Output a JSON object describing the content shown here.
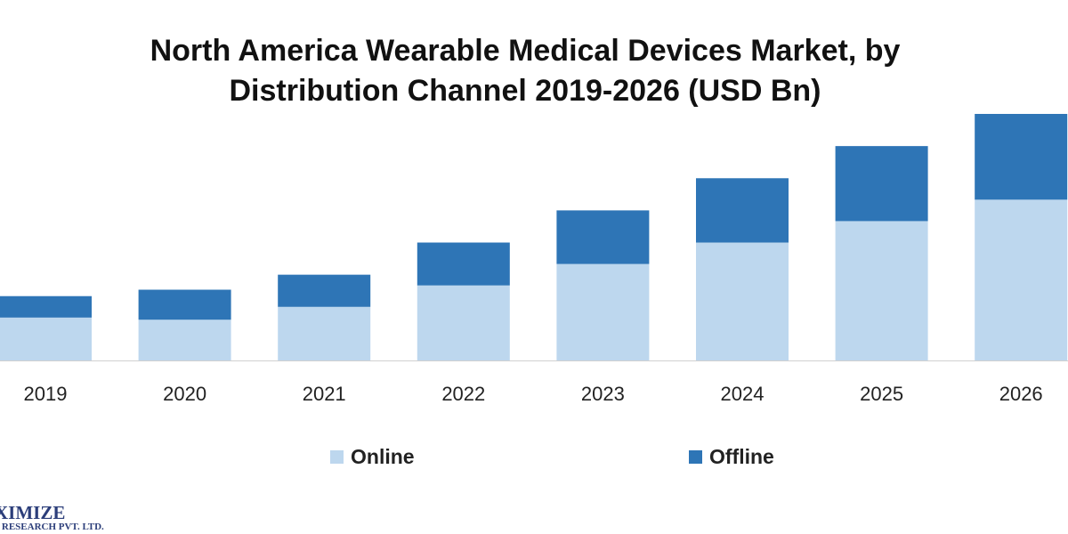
{
  "chart_data": {
    "type": "bar",
    "stacked": true,
    "title_line1": "North America Wearable Medical Devices Market, by",
    "title_line2": "Distribution Channel  2019-2026 (USD Bn)",
    "categories": [
      "2019",
      "2020",
      "2021",
      "2022",
      "2023",
      "2024",
      "2025",
      "2026"
    ],
    "series": [
      {
        "name": "Online",
        "color": "#bdd7ee",
        "values": [
          2.0,
          1.9,
          2.5,
          3.5,
          4.5,
          5.5,
          6.5,
          7.5
        ]
      },
      {
        "name": "Offline",
        "color": "#2e75b6",
        "values": [
          1.0,
          1.4,
          1.5,
          2.0,
          2.5,
          3.0,
          3.5,
          4.0
        ]
      }
    ],
    "ylim": [
      0,
      11.5
    ],
    "grid": false,
    "legend": "bottom"
  },
  "logo": {
    "main": "XIMIZE",
    "sub": "T RESEARCH PVT. LTD."
  }
}
